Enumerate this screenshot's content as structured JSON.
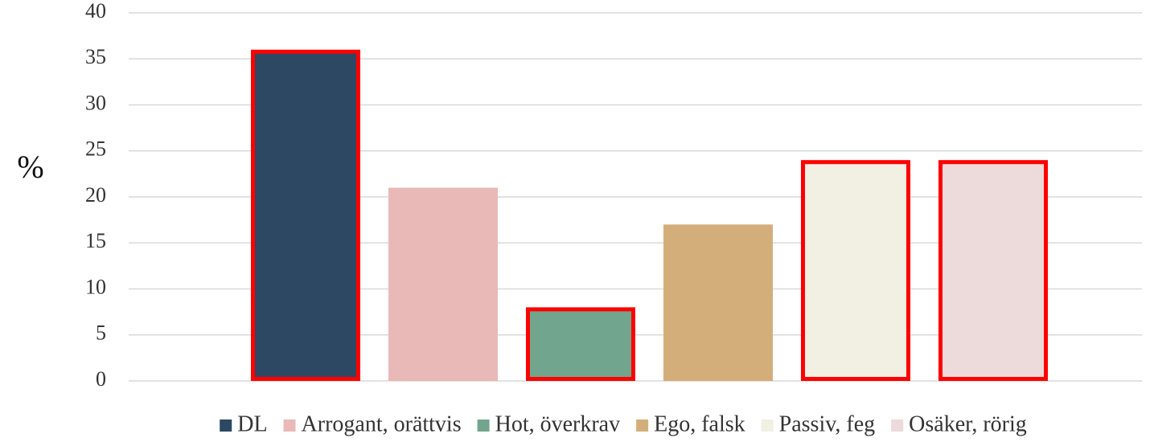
{
  "chart_data": {
    "type": "bar",
    "ylabel": "%",
    "categories": [
      null
    ],
    "series": [
      {
        "name": "DL",
        "color": "#2c4863",
        "values": [
          36
        ],
        "highlighted": true
      },
      {
        "name": "Arrogant, orättvis",
        "color": "#e9b9b8",
        "values": [
          21
        ],
        "highlighted": false
      },
      {
        "name": "Hot, överkrav",
        "color": "#72a58d",
        "values": [
          8
        ],
        "highlighted": true
      },
      {
        "name": "Ego, falsk",
        "color": "#d4ae7a",
        "values": [
          17
        ],
        "highlighted": false
      },
      {
        "name": "Passiv, feg",
        "color": "#f2efe3",
        "values": [
          24
        ],
        "highlighted": true
      },
      {
        "name": "Osäker, rörig",
        "color": "#eddada",
        "values": [
          24
        ],
        "highlighted": true
      }
    ],
    "highlight_color": "#ff0000",
    "ylim": [
      0,
      40
    ],
    "yticks": [
      0,
      5,
      10,
      15,
      20,
      25,
      30,
      35,
      40
    ],
    "grid": true,
    "legend": "bottom"
  }
}
